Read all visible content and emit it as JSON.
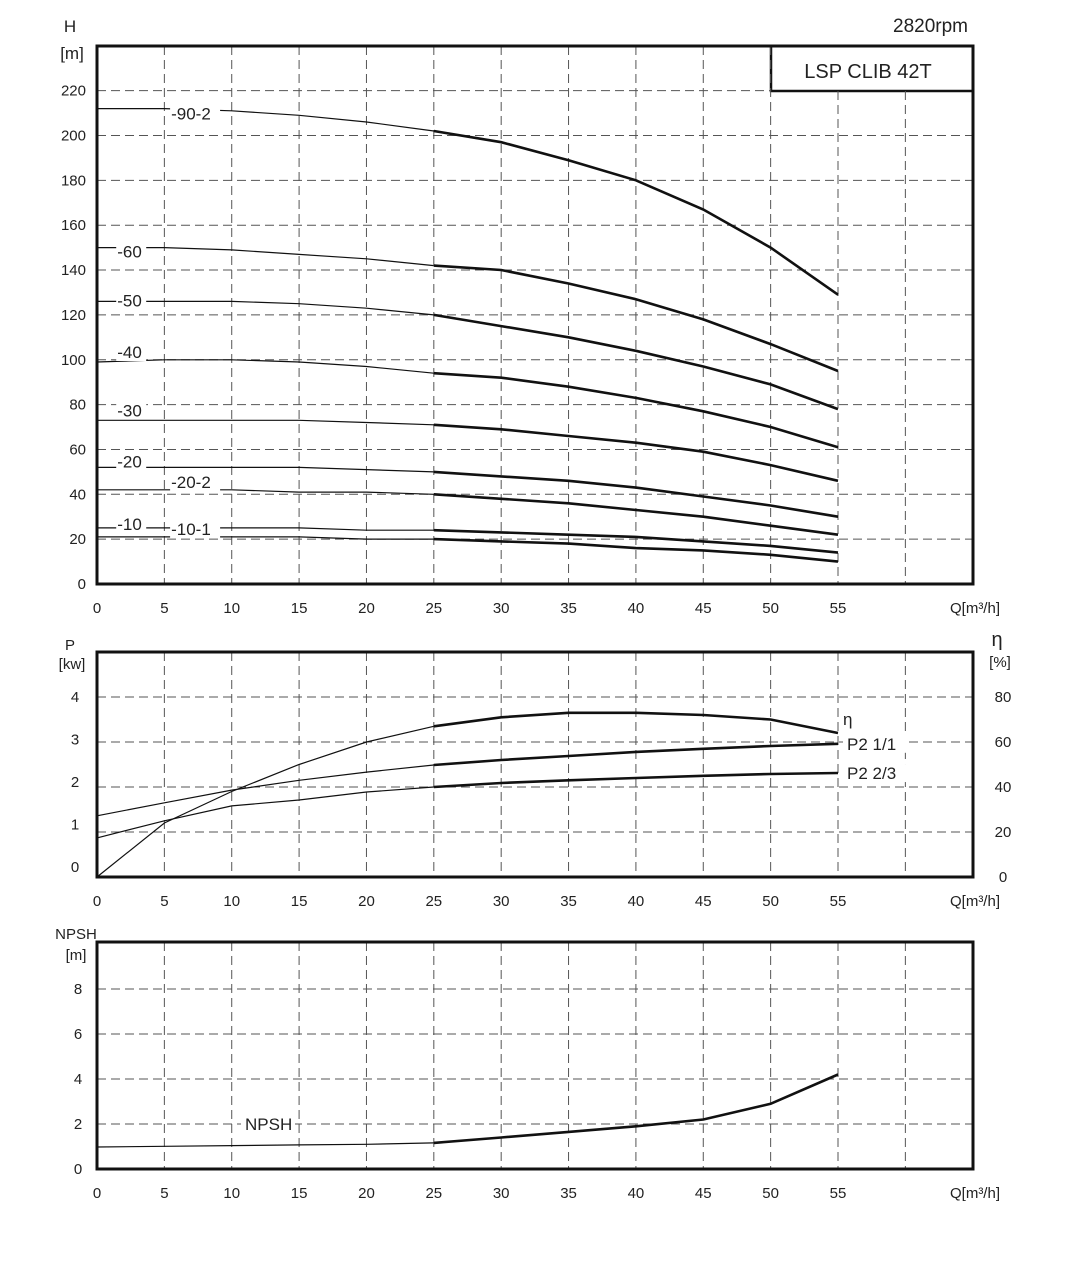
{
  "header": {
    "speed": "2820rpm",
    "model": "LSP CLIB 42T"
  },
  "chart_data": [
    {
      "type": "line",
      "title": "",
      "xlabel": "Q[m³/h]",
      "ylabel_top": "H",
      "ylabel_unit": "[m]",
      "xlim": [
        0,
        65
      ],
      "ylim": [
        0,
        240
      ],
      "x_ticks": [
        "0",
        "5",
        "10",
        "15",
        "20",
        "25",
        "30",
        "35",
        "40",
        "45",
        "50",
        "55"
      ],
      "y_ticks": [
        "0",
        "20",
        "40",
        "60",
        "80",
        "100",
        "120",
        "140",
        "160",
        "180",
        "200",
        "220"
      ],
      "grid": true,
      "x": [
        0,
        5,
        10,
        15,
        20,
        25,
        30,
        35,
        40,
        45,
        50,
        55
      ],
      "series": [
        {
          "name": "-90-2",
          "values": [
            212,
            212,
            211,
            209,
            206,
            202,
            197,
            189,
            180,
            167,
            150,
            129
          ]
        },
        {
          "name": "-60",
          "values": [
            150,
            150,
            149,
            147,
            145,
            142,
            140,
            134,
            127,
            118,
            107,
            95
          ]
        },
        {
          "name": "-50",
          "values": [
            126,
            126,
            126,
            125,
            123,
            120,
            115,
            110,
            104,
            97,
            89,
            78
          ]
        },
        {
          "name": "-40",
          "values": [
            99,
            100,
            100,
            99,
            97,
            94,
            92,
            88,
            83,
            77,
            70,
            61
          ]
        },
        {
          "name": "-30",
          "values": [
            73,
            73,
            73,
            73,
            72,
            71,
            69,
            66,
            63,
            59,
            53,
            46
          ]
        },
        {
          "name": "-20",
          "values": [
            52,
            52,
            52,
            52,
            51,
            50,
            48,
            46,
            43,
            39,
            35,
            30
          ]
        },
        {
          "name": "-20-2",
          "values": [
            42,
            42,
            42,
            41,
            41,
            40,
            38,
            36,
            33,
            30,
            26,
            22
          ]
        },
        {
          "name": "-10",
          "values": [
            25,
            25,
            25,
            25,
            24,
            24,
            23,
            22,
            21,
            19,
            17,
            14
          ]
        },
        {
          "name": "-10-1",
          "values": [
            21,
            21,
            21,
            21,
            20,
            20,
            19,
            18,
            16,
            15,
            13,
            10
          ]
        }
      ]
    },
    {
      "type": "line",
      "title": "",
      "xlabel": "Q[m³/h]",
      "ylabel_left": "P",
      "ylabel_left_unit": "[kw]",
      "ylabel_right": "η",
      "ylabel_right_unit": "[%]",
      "xlim": [
        0,
        65
      ],
      "ylim_left": [
        0,
        4
      ],
      "ylim_right": [
        0,
        80
      ],
      "x_ticks": [
        "0",
        "5",
        "10",
        "15",
        "20",
        "25",
        "30",
        "35",
        "40",
        "45",
        "50",
        "55"
      ],
      "y_ticks_left": [
        "0",
        "1",
        "2",
        "3",
        "4"
      ],
      "y_ticks_right": [
        "0",
        "20",
        "40",
        "60",
        "80"
      ],
      "grid": true,
      "x": [
        0,
        5,
        10,
        15,
        20,
        25,
        30,
        35,
        40,
        45,
        50,
        55
      ],
      "series": [
        {
          "name": "η",
          "axis": "right",
          "values": [
            0,
            24,
            38,
            50,
            60,
            67,
            71,
            73,
            73,
            72,
            70,
            64
          ]
        },
        {
          "name": "P2  1/1",
          "axis": "left",
          "values": [
            1.36,
            1.65,
            1.93,
            2.15,
            2.33,
            2.49,
            2.6,
            2.69,
            2.78,
            2.85,
            2.91,
            2.96
          ]
        },
        {
          "name": "P2  2/3",
          "axis": "left",
          "values": [
            0.87,
            1.25,
            1.58,
            1.71,
            1.89,
            2.0,
            2.09,
            2.15,
            2.2,
            2.25,
            2.29,
            2.31
          ]
        }
      ]
    },
    {
      "type": "line",
      "title": "",
      "xlabel": "Q[m³/h]",
      "ylabel_top": "NPSH",
      "ylabel_unit": "[m]",
      "xlim": [
        0,
        65
      ],
      "ylim": [
        0,
        10
      ],
      "x_ticks": [
        "0",
        "5",
        "10",
        "15",
        "20",
        "25",
        "30",
        "35",
        "40",
        "45",
        "50",
        "55"
      ],
      "y_ticks": [
        "0",
        "2",
        "4",
        "6",
        "8"
      ],
      "grid": true,
      "x": [
        0,
        5,
        10,
        15,
        20,
        25,
        30,
        35,
        40,
        45,
        50,
        55
      ],
      "series": [
        {
          "name": "NPSH",
          "values": [
            0.98,
            1.01,
            1.04,
            1.07,
            1.1,
            1.16,
            1.4,
            1.65,
            1.9,
            2.2,
            2.9,
            4.2
          ]
        }
      ]
    }
  ]
}
